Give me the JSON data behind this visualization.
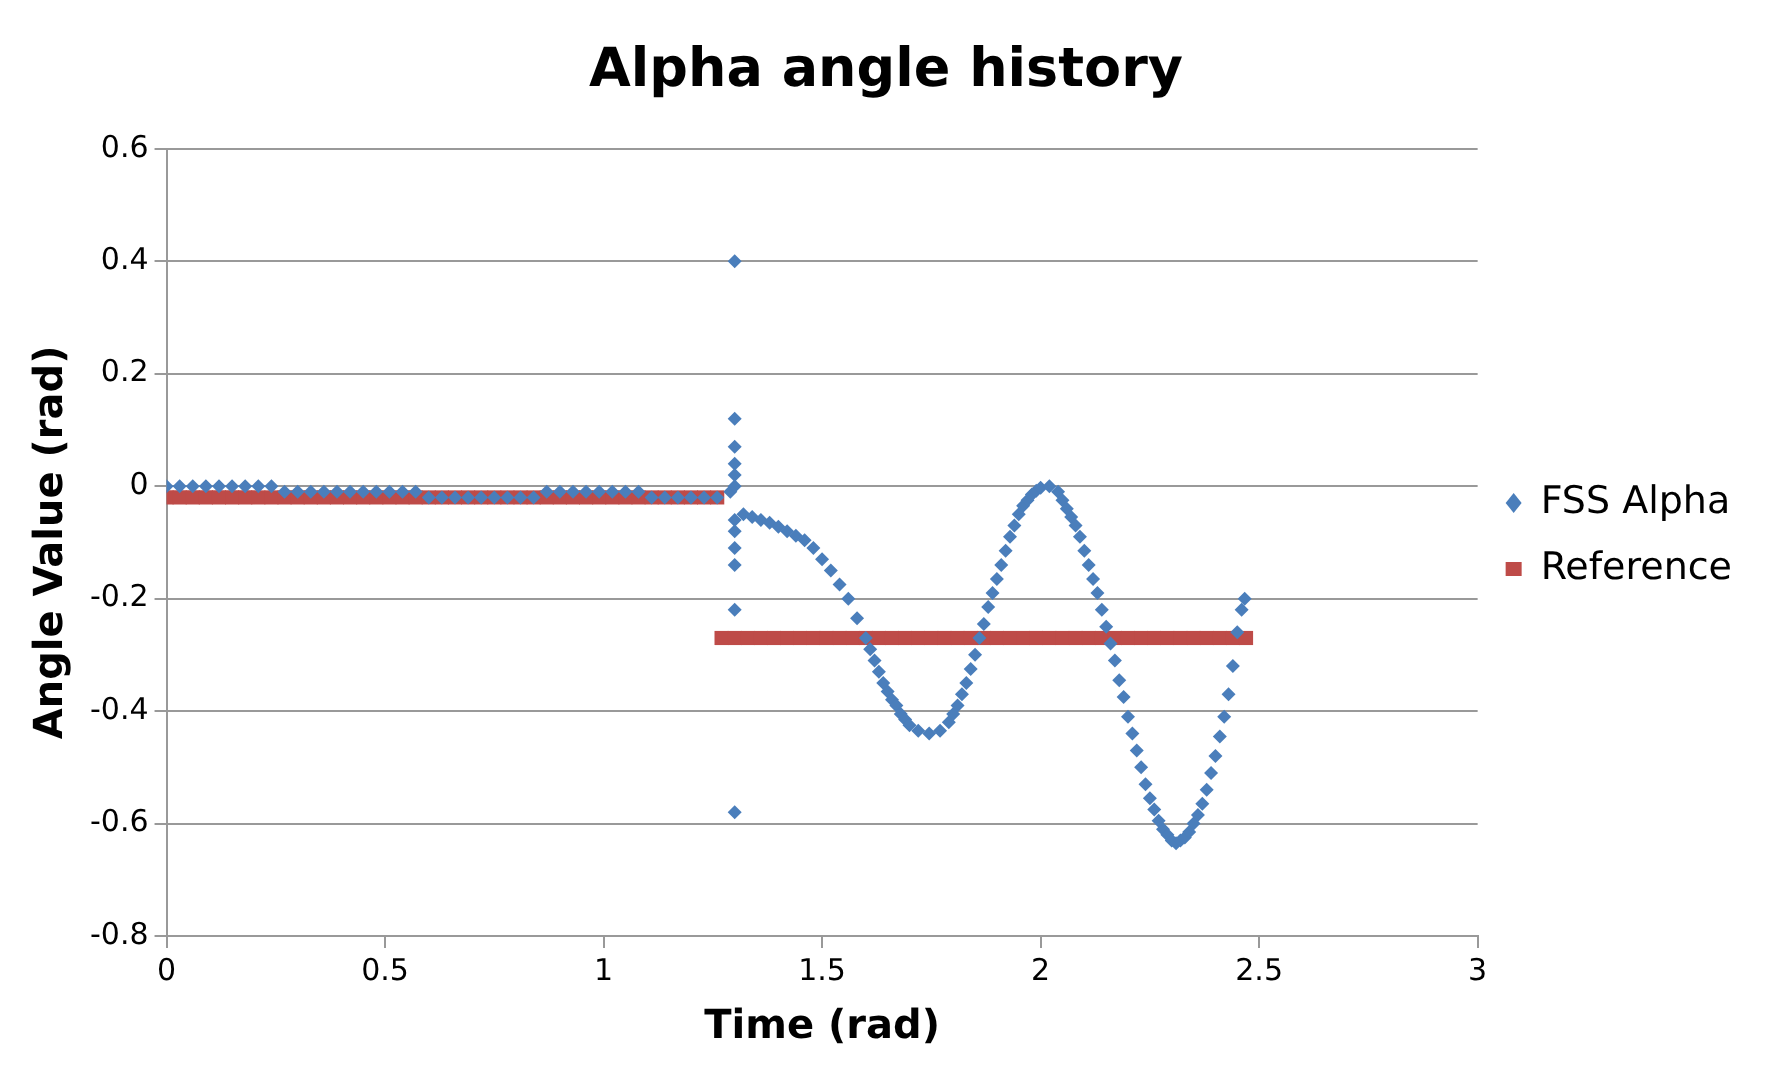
{
  "chart_data": {
    "type": "scatter",
    "title": "Alpha angle history",
    "xlabel": "Time (rad)",
    "ylabel": "Angle Value (rad)",
    "xlim": [
      0,
      3
    ],
    "xticks": [
      0,
      0.5,
      1,
      1.5,
      2,
      2.5,
      3
    ],
    "ylim": [
      -0.8,
      0.6
    ],
    "yticks": [
      -0.8,
      -0.6,
      -0.4,
      -0.2,
      0,
      0.2,
      0.4,
      0.6
    ],
    "grid": "y",
    "legend": "right",
    "series": [
      {
        "name": "FSS Alpha",
        "color": "#4a7ebb",
        "marker": "diamond",
        "x": [
          0,
          0.03,
          0.06,
          0.09,
          0.12,
          0.15,
          0.18,
          0.21,
          0.24,
          0.27,
          0.3,
          0.33,
          0.36,
          0.39,
          0.42,
          0.45,
          0.48,
          0.51,
          0.54,
          0.57,
          0.6,
          0.63,
          0.66,
          0.69,
          0.72,
          0.75,
          0.78,
          0.81,
          0.84,
          0.87,
          0.9,
          0.93,
          0.96,
          0.99,
          1.02,
          1.05,
          1.08,
          1.11,
          1.14,
          1.17,
          1.2,
          1.23,
          1.26,
          1.29,
          1.3,
          1.3,
          1.3,
          1.3,
          1.3,
          1.3,
          1.3,
          1.3,
          1.3,
          1.3,
          1.3,
          1.3,
          1.32,
          1.34,
          1.36,
          1.38,
          1.4,
          1.42,
          1.44,
          1.46,
          1.48,
          1.5,
          1.52,
          1.54,
          1.56,
          1.58,
          1.6,
          1.61,
          1.62,
          1.63,
          1.64,
          1.65,
          1.66,
          1.67,
          1.68,
          1.69,
          1.7,
          1.72,
          1.745,
          1.77,
          1.79,
          1.8,
          1.81,
          1.82,
          1.83,
          1.84,
          1.85,
          1.86,
          1.87,
          1.88,
          1.89,
          1.9,
          1.91,
          1.92,
          1.93,
          1.94,
          1.95,
          1.96,
          1.97,
          1.98,
          1.99,
          2.0,
          2.02,
          2.04,
          2.05,
          2.06,
          2.07,
          2.08,
          2.09,
          2.1,
          2.11,
          2.12,
          2.13,
          2.14,
          2.15,
          2.16,
          2.17,
          2.18,
          2.19,
          2.2,
          2.21,
          2.22,
          2.23,
          2.24,
          2.25,
          2.26,
          2.27,
          2.28,
          2.29,
          2.3,
          2.31,
          2.32,
          2.33,
          2.34,
          2.35,
          2.36,
          2.37,
          2.38,
          2.39,
          2.4,
          2.41,
          2.42,
          2.43,
          2.44,
          2.45,
          2.46,
          2.467
        ],
        "values": [
          0,
          0,
          0,
          0,
          0,
          0,
          0,
          0,
          0,
          -0.01,
          -0.01,
          -0.01,
          -0.01,
          -0.01,
          -0.01,
          -0.01,
          -0.01,
          -0.01,
          -0.01,
          -0.01,
          -0.02,
          -0.02,
          -0.02,
          -0.02,
          -0.02,
          -0.02,
          -0.02,
          -0.02,
          -0.02,
          -0.01,
          -0.01,
          -0.01,
          -0.01,
          -0.01,
          -0.01,
          -0.01,
          -0.01,
          -0.02,
          -0.02,
          -0.02,
          -0.02,
          -0.02,
          -0.02,
          -0.01,
          0.4,
          0.12,
          0.07,
          0.04,
          0.02,
          0,
          -0.06,
          -0.08,
          -0.11,
          -0.14,
          -0.22,
          -0.58,
          -0.05,
          -0.055,
          -0.06,
          -0.065,
          -0.072,
          -0.08,
          -0.088,
          -0.096,
          -0.11,
          -0.13,
          -0.15,
          -0.175,
          -0.2,
          -0.235,
          -0.27,
          -0.29,
          -0.31,
          -0.33,
          -0.35,
          -0.365,
          -0.38,
          -0.39,
          -0.405,
          -0.415,
          -0.425,
          -0.435,
          -0.44,
          -0.435,
          -0.42,
          -0.405,
          -0.39,
          -0.37,
          -0.35,
          -0.325,
          -0.3,
          -0.27,
          -0.245,
          -0.215,
          -0.19,
          -0.165,
          -0.14,
          -0.115,
          -0.09,
          -0.07,
          -0.05,
          -0.035,
          -0.025,
          -0.015,
          -0.008,
          -0.003,
          0,
          -0.01,
          -0.025,
          -0.04,
          -0.055,
          -0.07,
          -0.09,
          -0.115,
          -0.14,
          -0.165,
          -0.19,
          -0.22,
          -0.25,
          -0.28,
          -0.31,
          -0.345,
          -0.375,
          -0.41,
          -0.44,
          -0.47,
          -0.5,
          -0.53,
          -0.555,
          -0.575,
          -0.595,
          -0.61,
          -0.62,
          -0.63,
          -0.635,
          -0.63,
          -0.625,
          -0.615,
          -0.6,
          -0.585,
          -0.565,
          -0.54,
          -0.51,
          -0.48,
          -0.445,
          -0.41,
          -0.37,
          -0.32,
          -0.26,
          -0.22,
          -0.2
        ]
      },
      {
        "name": "Reference",
        "color": "#be4b48",
        "marker": "square",
        "x": [
          0,
          0.03,
          0.06,
          0.09,
          0.12,
          0.15,
          0.18,
          0.21,
          0.24,
          0.27,
          0.3,
          0.33,
          0.36,
          0.39,
          0.42,
          0.45,
          0.48,
          0.51,
          0.54,
          0.57,
          0.6,
          0.63,
          0.66,
          0.69,
          0.72,
          0.75,
          0.78,
          0.81,
          0.84,
          0.87,
          0.9,
          0.93,
          0.96,
          0.99,
          1.02,
          1.05,
          1.08,
          1.11,
          1.14,
          1.17,
          1.2,
          1.23,
          1.26,
          1.27,
          1.3,
          1.33,
          1.36,
          1.39,
          1.42,
          1.45,
          1.48,
          1.51,
          1.54,
          1.57,
          1.6,
          1.63,
          1.66,
          1.69,
          1.72,
          1.75,
          1.78,
          1.81,
          1.84,
          1.87,
          1.9,
          1.93,
          1.96,
          1.99,
          2.02,
          2.05,
          2.08,
          2.11,
          2.14,
          2.17,
          2.2,
          2.23,
          2.26,
          2.29,
          2.32,
          2.35,
          2.38,
          2.41,
          2.44,
          2.47
        ],
        "values": [
          -0.02,
          -0.02,
          -0.02,
          -0.02,
          -0.02,
          -0.02,
          -0.02,
          -0.02,
          -0.02,
          -0.02,
          -0.02,
          -0.02,
          -0.02,
          -0.02,
          -0.02,
          -0.02,
          -0.02,
          -0.02,
          -0.02,
          -0.02,
          -0.02,
          -0.02,
          -0.02,
          -0.02,
          -0.02,
          -0.02,
          -0.02,
          -0.02,
          -0.02,
          -0.02,
          -0.02,
          -0.02,
          -0.02,
          -0.02,
          -0.02,
          -0.02,
          -0.02,
          -0.02,
          -0.02,
          -0.02,
          -0.02,
          -0.02,
          -0.02,
          -0.27,
          -0.27,
          -0.27,
          -0.27,
          -0.27,
          -0.27,
          -0.27,
          -0.27,
          -0.27,
          -0.27,
          -0.27,
          -0.27,
          -0.27,
          -0.27,
          -0.27,
          -0.27,
          -0.27,
          -0.27,
          -0.27,
          -0.27,
          -0.27,
          -0.27,
          -0.27,
          -0.27,
          -0.27,
          -0.27,
          -0.27,
          -0.27,
          -0.27,
          -0.27,
          -0.27,
          -0.27,
          -0.27,
          -0.27,
          -0.27,
          -0.27,
          -0.27,
          -0.27,
          -0.27,
          -0.27,
          -0.27
        ]
      }
    ]
  }
}
